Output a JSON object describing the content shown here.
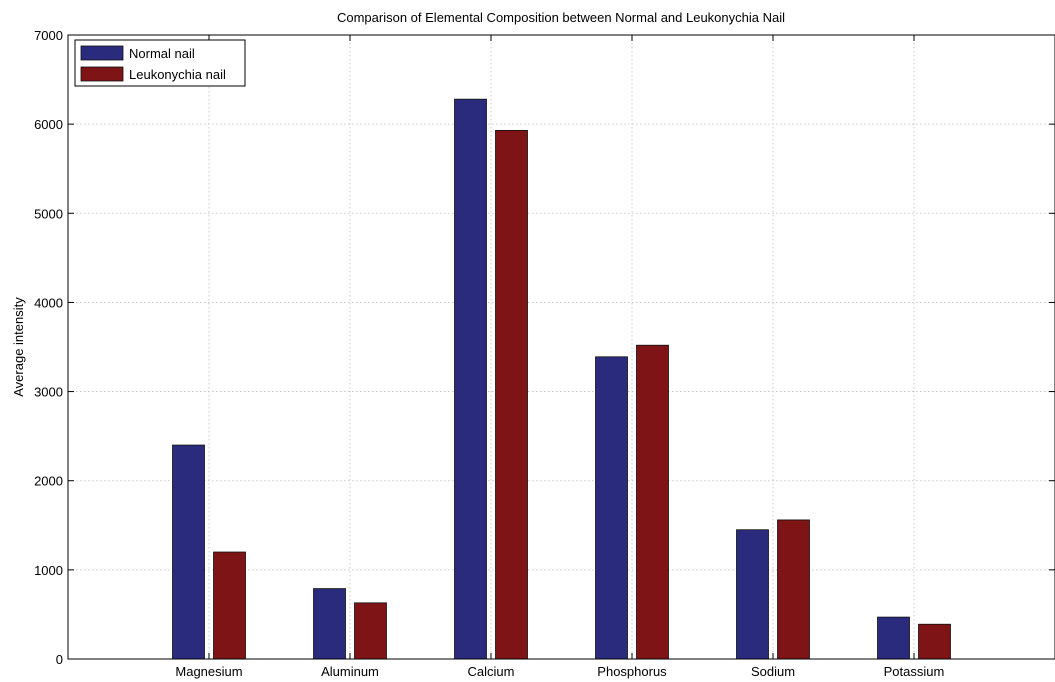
{
  "chart_data": {
    "type": "bar",
    "title": "Comparison of Elemental Composition between Normal and Leukonychia Nail",
    "xlabel": "",
    "ylabel": "Average intensity",
    "categories": [
      "Magnesium",
      "Aluminum",
      "Calcium",
      "Phosphorus",
      "Sodium",
      "Potassium"
    ],
    "series": [
      {
        "name": "Normal nail",
        "color": "#2b2b7e",
        "values": [
          2400,
          790,
          6280,
          3390,
          1450,
          470
        ]
      },
      {
        "name": "Leukonychia nail",
        "color": "#7e1416",
        "values": [
          1200,
          630,
          5930,
          3520,
          1560,
          390
        ]
      }
    ],
    "ylim": [
      0,
      7000
    ],
    "yticks": [
      0,
      1000,
      2000,
      3000,
      4000,
      5000,
      6000,
      7000
    ],
    "grid": true,
    "legend_position": "top-left"
  }
}
